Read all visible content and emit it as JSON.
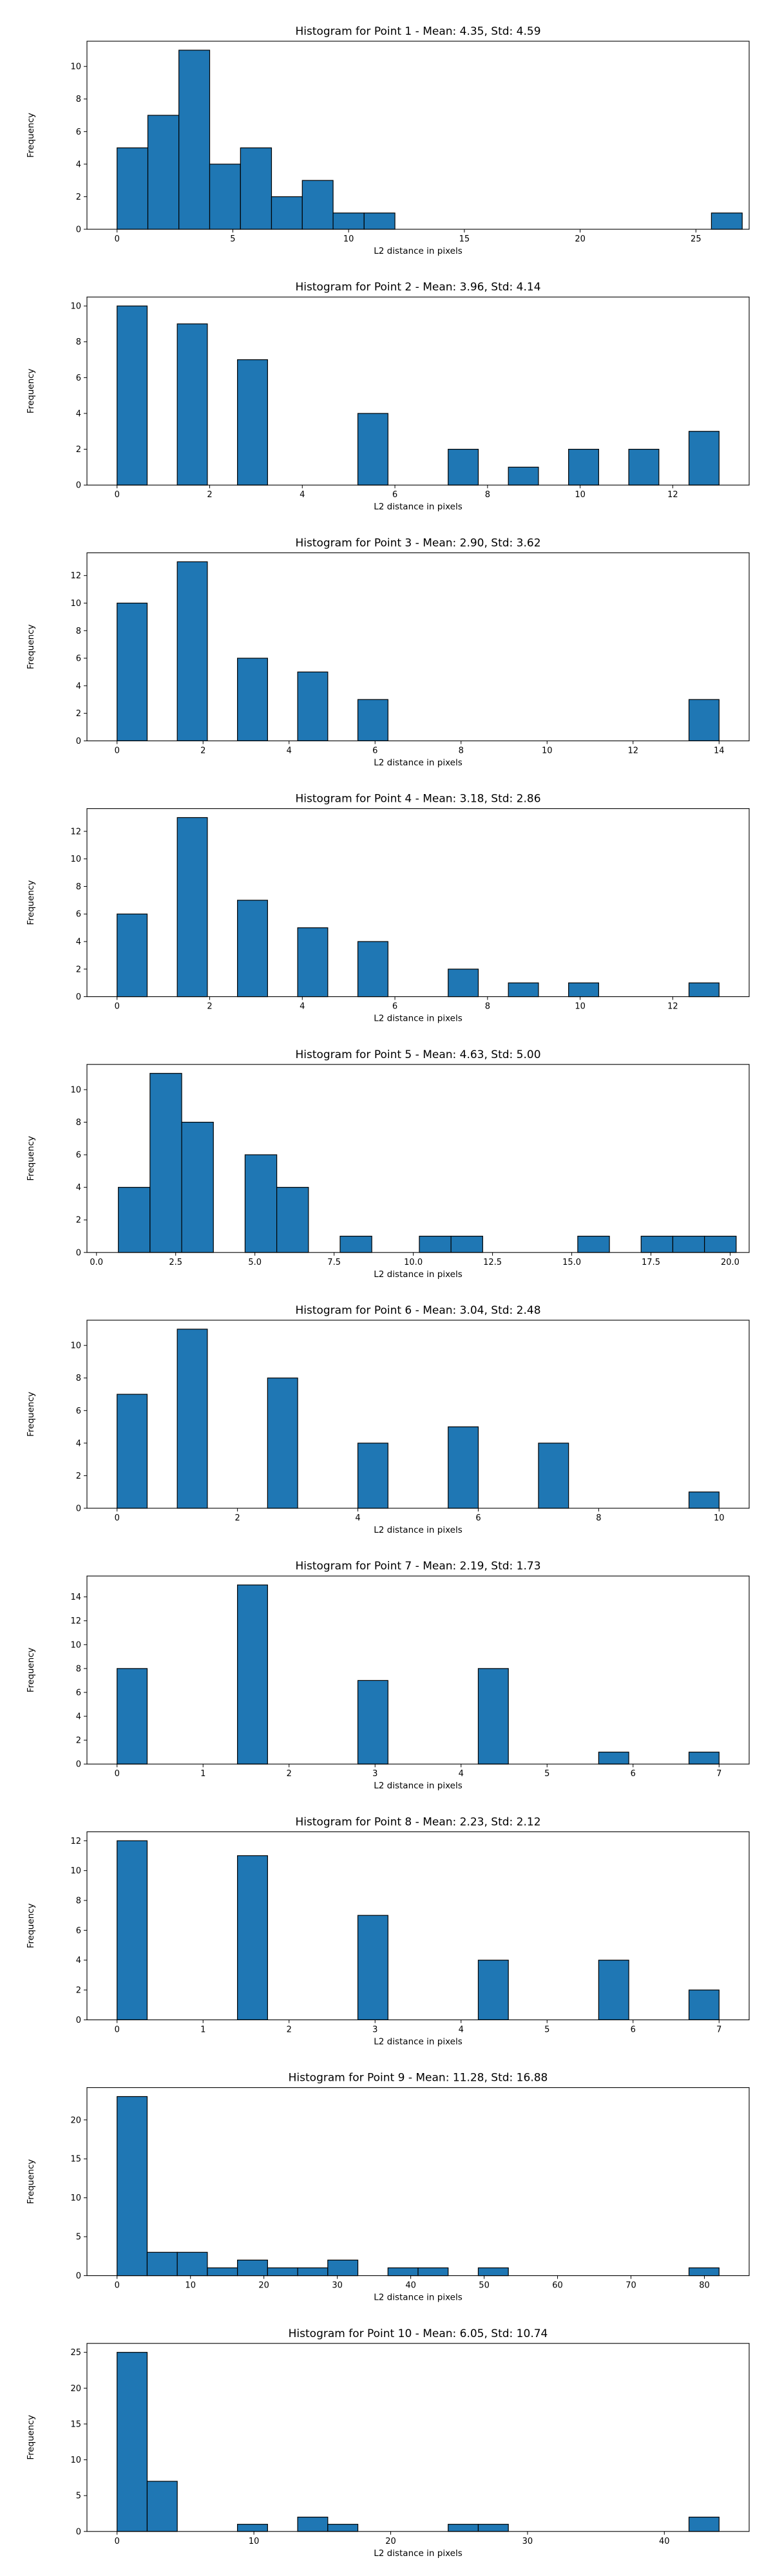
{
  "colors": {
    "bar_fill": "#1f77b4",
    "bar_edge": "#000000",
    "axes": "#000000",
    "background": "#ffffff"
  },
  "chart_data": [
    {
      "type": "bar",
      "title": "Histogram for Point 1 - Mean: 4.35, Std: 4.59",
      "xlabel": "L2 distance in pixels",
      "ylabel": "Frequency",
      "xlim": [
        -1.3,
        27.3
      ],
      "ylim": [
        0,
        11.55
      ],
      "xticks": [
        0,
        5,
        10,
        15,
        20,
        25
      ],
      "xtick_labels": [
        "0",
        "5",
        "10",
        "15",
        "20",
        "25"
      ],
      "yticks": [
        0,
        2,
        4,
        6,
        8,
        10
      ],
      "ytick_labels": [
        "0",
        "2",
        "4",
        "6",
        "8",
        "10"
      ],
      "bins": [
        {
          "x0": 0.0,
          "x1": 1.33,
          "count": 5
        },
        {
          "x0": 1.33,
          "x1": 2.67,
          "count": 7
        },
        {
          "x0": 2.67,
          "x1": 4.0,
          "count": 11
        },
        {
          "x0": 4.0,
          "x1": 5.33,
          "count": 4
        },
        {
          "x0": 5.33,
          "x1": 6.67,
          "count": 5
        },
        {
          "x0": 6.67,
          "x1": 8.0,
          "count": 2
        },
        {
          "x0": 8.0,
          "x1": 9.33,
          "count": 3
        },
        {
          "x0": 9.33,
          "x1": 10.67,
          "count": 1
        },
        {
          "x0": 10.67,
          "x1": 12.0,
          "count": 1
        },
        {
          "x0": 25.67,
          "x1": 27.0,
          "count": 1
        }
      ]
    },
    {
      "type": "bar",
      "title": "Histogram for Point 2 - Mean: 3.96, Std: 4.14",
      "xlabel": "L2 distance in pixels",
      "ylabel": "Frequency",
      "xlim": [
        -0.65,
        13.65
      ],
      "ylim": [
        0,
        10.5
      ],
      "xticks": [
        0,
        2,
        4,
        6,
        8,
        10,
        12
      ],
      "xtick_labels": [
        "0",
        "2",
        "4",
        "6",
        "8",
        "10",
        "12"
      ],
      "yticks": [
        0,
        2,
        4,
        6,
        8,
        10
      ],
      "ytick_labels": [
        "0",
        "2",
        "4",
        "6",
        "8",
        "10"
      ],
      "bins": [
        {
          "x0": 0.0,
          "x1": 0.65,
          "count": 10
        },
        {
          "x0": 1.3,
          "x1": 1.95,
          "count": 9
        },
        {
          "x0": 2.6,
          "x1": 3.25,
          "count": 7
        },
        {
          "x0": 5.2,
          "x1": 5.85,
          "count": 4
        },
        {
          "x0": 7.15,
          "x1": 7.8,
          "count": 2
        },
        {
          "x0": 8.45,
          "x1": 9.1,
          "count": 1
        },
        {
          "x0": 9.75,
          "x1": 10.4,
          "count": 2
        },
        {
          "x0": 11.05,
          "x1": 11.7,
          "count": 2
        },
        {
          "x0": 12.35,
          "x1": 13.0,
          "count": 3
        }
      ]
    },
    {
      "type": "bar",
      "title": "Histogram for Point 3 - Mean: 2.90, Std: 3.62",
      "xlabel": "L2 distance in pixels",
      "ylabel": "Frequency",
      "xlim": [
        -0.7,
        14.7
      ],
      "ylim": [
        0,
        13.65
      ],
      "xticks": [
        0,
        2,
        4,
        6,
        8,
        10,
        12,
        14
      ],
      "xtick_labels": [
        "0",
        "2",
        "4",
        "6",
        "8",
        "10",
        "12",
        "14"
      ],
      "yticks": [
        0,
        2,
        4,
        6,
        8,
        10,
        12
      ],
      "ytick_labels": [
        "0",
        "2",
        "4",
        "6",
        "8",
        "10",
        "12"
      ],
      "bins": [
        {
          "x0": 0.0,
          "x1": 0.7,
          "count": 10
        },
        {
          "x0": 1.4,
          "x1": 2.1,
          "count": 13
        },
        {
          "x0": 2.8,
          "x1": 3.5,
          "count": 6
        },
        {
          "x0": 4.2,
          "x1": 4.9,
          "count": 5
        },
        {
          "x0": 5.6,
          "x1": 6.3,
          "count": 3
        },
        {
          "x0": 13.3,
          "x1": 14.0,
          "count": 3
        }
      ]
    },
    {
      "type": "bar",
      "title": "Histogram for Point 4 - Mean: 3.18, Std: 2.86",
      "xlabel": "L2 distance in pixels",
      "ylabel": "Frequency",
      "xlim": [
        -0.65,
        13.65
      ],
      "ylim": [
        0,
        13.65
      ],
      "xticks": [
        0,
        2,
        4,
        6,
        8,
        10,
        12
      ],
      "xtick_labels": [
        "0",
        "2",
        "4",
        "6",
        "8",
        "10",
        "12"
      ],
      "yticks": [
        0,
        2,
        4,
        6,
        8,
        10,
        12
      ],
      "ytick_labels": [
        "0",
        "2",
        "4",
        "6",
        "8",
        "10",
        "12"
      ],
      "bins": [
        {
          "x0": 0.0,
          "x1": 0.65,
          "count": 6
        },
        {
          "x0": 1.3,
          "x1": 1.95,
          "count": 13
        },
        {
          "x0": 2.6,
          "x1": 3.25,
          "count": 7
        },
        {
          "x0": 3.9,
          "x1": 4.55,
          "count": 5
        },
        {
          "x0": 5.2,
          "x1": 5.85,
          "count": 4
        },
        {
          "x0": 7.15,
          "x1": 7.8,
          "count": 2
        },
        {
          "x0": 8.45,
          "x1": 9.1,
          "count": 1
        },
        {
          "x0": 9.75,
          "x1": 10.4,
          "count": 1
        },
        {
          "x0": 12.35,
          "x1": 13.0,
          "count": 1
        }
      ]
    },
    {
      "type": "bar",
      "title": "Histogram for Point 5 - Mean: 4.63, Std: 5.00",
      "xlabel": "L2 distance in pixels",
      "ylabel": "Frequency",
      "xlim": [
        -0.3,
        20.6
      ],
      "ylim": [
        0,
        11.55
      ],
      "xticks": [
        0,
        2.5,
        5,
        7.5,
        10,
        12.5,
        15,
        17.5,
        20
      ],
      "xtick_labels": [
        "0.0",
        "2.5",
        "5.0",
        "7.5",
        "10.0",
        "12.5",
        "15.0",
        "17.5",
        "20.0"
      ],
      "yticks": [
        0,
        2,
        4,
        6,
        8,
        10
      ],
      "ytick_labels": [
        "0",
        "2",
        "4",
        "6",
        "8",
        "10"
      ],
      "bins": [
        {
          "x0": 0.69,
          "x1": 1.69,
          "count": 4
        },
        {
          "x0": 1.69,
          "x1": 2.69,
          "count": 11
        },
        {
          "x0": 2.69,
          "x1": 3.69,
          "count": 8
        },
        {
          "x0": 4.69,
          "x1": 5.69,
          "count": 6
        },
        {
          "x0": 5.69,
          "x1": 6.69,
          "count": 4
        },
        {
          "x0": 7.69,
          "x1": 8.69,
          "count": 1
        },
        {
          "x0": 10.19,
          "x1": 11.19,
          "count": 1
        },
        {
          "x0": 11.19,
          "x1": 12.19,
          "count": 1
        },
        {
          "x0": 15.19,
          "x1": 16.19,
          "count": 1
        },
        {
          "x0": 17.19,
          "x1": 18.19,
          "count": 1
        },
        {
          "x0": 18.19,
          "x1": 19.19,
          "count": 1
        },
        {
          "x0": 19.19,
          "x1": 20.19,
          "count": 1
        }
      ]
    },
    {
      "type": "bar",
      "title": "Histogram for Point 6 - Mean: 3.04, Std: 2.48",
      "xlabel": "L2 distance in pixels",
      "ylabel": "Frequency",
      "xlim": [
        -0.5,
        10.5
      ],
      "ylim": [
        0,
        11.55
      ],
      "xticks": [
        0,
        2,
        4,
        6,
        8,
        10
      ],
      "xtick_labels": [
        "0",
        "2",
        "4",
        "6",
        "8",
        "10"
      ],
      "yticks": [
        0,
        2,
        4,
        6,
        8,
        10
      ],
      "ytick_labels": [
        "0",
        "2",
        "4",
        "6",
        "8",
        "10"
      ],
      "bins": [
        {
          "x0": 0.0,
          "x1": 0.5,
          "count": 7
        },
        {
          "x0": 1.0,
          "x1": 1.5,
          "count": 11
        },
        {
          "x0": 2.5,
          "x1": 3.0,
          "count": 8
        },
        {
          "x0": 4.0,
          "x1": 4.5,
          "count": 4
        },
        {
          "x0": 5.5,
          "x1": 6.0,
          "count": 5
        },
        {
          "x0": 7.0,
          "x1": 7.5,
          "count": 4
        },
        {
          "x0": 9.5,
          "x1": 10.0,
          "count": 1
        }
      ]
    },
    {
      "type": "bar",
      "title": "Histogram for Point 7 - Mean: 2.19, Std: 1.73",
      "xlabel": "L2 distance in pixels",
      "ylabel": "Frequency",
      "xlim": [
        -0.35,
        7.35
      ],
      "ylim": [
        0,
        15.75
      ],
      "xticks": [
        0,
        1,
        2,
        3,
        4,
        5,
        6,
        7
      ],
      "xtick_labels": [
        "0",
        "1",
        "2",
        "3",
        "4",
        "5",
        "6",
        "7"
      ],
      "yticks": [
        0,
        2,
        4,
        6,
        8,
        10,
        12,
        14
      ],
      "ytick_labels": [
        "0",
        "2",
        "4",
        "6",
        "8",
        "10",
        "12",
        "14"
      ],
      "bins": [
        {
          "x0": 0.0,
          "x1": 0.35,
          "count": 8
        },
        {
          "x0": 1.4,
          "x1": 1.75,
          "count": 15
        },
        {
          "x0": 2.8,
          "x1": 3.15,
          "count": 7
        },
        {
          "x0": 4.2,
          "x1": 4.55,
          "count": 8
        },
        {
          "x0": 5.6,
          "x1": 5.95,
          "count": 1
        },
        {
          "x0": 6.65,
          "x1": 7.0,
          "count": 1
        }
      ]
    },
    {
      "type": "bar",
      "title": "Histogram for Point 8 - Mean: 2.23, Std: 2.12",
      "xlabel": "L2 distance in pixels",
      "ylabel": "Frequency",
      "xlim": [
        -0.35,
        7.35
      ],
      "ylim": [
        0,
        12.6
      ],
      "xticks": [
        0,
        1,
        2,
        3,
        4,
        5,
        6,
        7
      ],
      "xtick_labels": [
        "0",
        "1",
        "2",
        "3",
        "4",
        "5",
        "6",
        "7"
      ],
      "yticks": [
        0,
        2,
        4,
        6,
        8,
        10,
        12
      ],
      "ytick_labels": [
        "0",
        "2",
        "4",
        "6",
        "8",
        "10",
        "12"
      ],
      "bins": [
        {
          "x0": 0.0,
          "x1": 0.35,
          "count": 12
        },
        {
          "x0": 1.4,
          "x1": 1.75,
          "count": 11
        },
        {
          "x0": 2.8,
          "x1": 3.15,
          "count": 7
        },
        {
          "x0": 4.2,
          "x1": 4.55,
          "count": 4
        },
        {
          "x0": 5.6,
          "x1": 5.95,
          "count": 4
        },
        {
          "x0": 6.65,
          "x1": 7.0,
          "count": 2
        }
      ]
    },
    {
      "type": "bar",
      "title": "Histogram for Point 9 - Mean: 11.28, Std: 16.88",
      "xlabel": "L2 distance in pixels",
      "ylabel": "Frequency",
      "xlim": [
        -4.1,
        86.1
      ],
      "ylim": [
        0,
        24.15
      ],
      "xticks": [
        0,
        10,
        20,
        30,
        40,
        50,
        60,
        70,
        80
      ],
      "xtick_labels": [
        "0",
        "10",
        "20",
        "30",
        "40",
        "50",
        "60",
        "70",
        "80"
      ],
      "yticks": [
        0,
        5,
        10,
        15,
        20
      ],
      "ytick_labels": [
        "0",
        "5",
        "10",
        "15",
        "20"
      ],
      "bins": [
        {
          "x0": 0.0,
          "x1": 4.1,
          "count": 23
        },
        {
          "x0": 4.1,
          "x1": 8.2,
          "count": 3
        },
        {
          "x0": 8.2,
          "x1": 12.3,
          "count": 3
        },
        {
          "x0": 12.3,
          "x1": 16.4,
          "count": 1
        },
        {
          "x0": 16.4,
          "x1": 20.5,
          "count": 2
        },
        {
          "x0": 20.5,
          "x1": 24.6,
          "count": 1
        },
        {
          "x0": 24.6,
          "x1": 28.7,
          "count": 1
        },
        {
          "x0": 28.7,
          "x1": 32.8,
          "count": 2
        },
        {
          "x0": 36.9,
          "x1": 41.0,
          "count": 1
        },
        {
          "x0": 41.0,
          "x1": 45.1,
          "count": 1
        },
        {
          "x0": 49.2,
          "x1": 53.3,
          "count": 1
        },
        {
          "x0": 77.9,
          "x1": 82.0,
          "count": 1
        }
      ]
    },
    {
      "type": "bar",
      "title": "Histogram for Point 10 - Mean: 6.05, Std: 10.74",
      "xlabel": "L2 distance in pixels",
      "ylabel": "Frequency",
      "xlim": [
        -2.2,
        46.2
      ],
      "ylim": [
        0,
        26.25
      ],
      "xticks": [
        0,
        10,
        20,
        30,
        40
      ],
      "xtick_labels": [
        "0",
        "10",
        "20",
        "30",
        "40"
      ],
      "yticks": [
        0,
        5,
        10,
        15,
        20,
        25
      ],
      "ytick_labels": [
        "0",
        "5",
        "10",
        "15",
        "20",
        "25"
      ],
      "bins": [
        {
          "x0": 0.0,
          "x1": 2.2,
          "count": 25
        },
        {
          "x0": 2.2,
          "x1": 4.4,
          "count": 7
        },
        {
          "x0": 8.8,
          "x1": 11.0,
          "count": 1
        },
        {
          "x0": 13.2,
          "x1": 15.4,
          "count": 2
        },
        {
          "x0": 15.4,
          "x1": 17.6,
          "count": 1
        },
        {
          "x0": 24.2,
          "x1": 26.4,
          "count": 1
        },
        {
          "x0": 26.4,
          "x1": 28.6,
          "count": 1
        },
        {
          "x0": 41.8,
          "x1": 44.0,
          "count": 2
        }
      ]
    }
  ]
}
